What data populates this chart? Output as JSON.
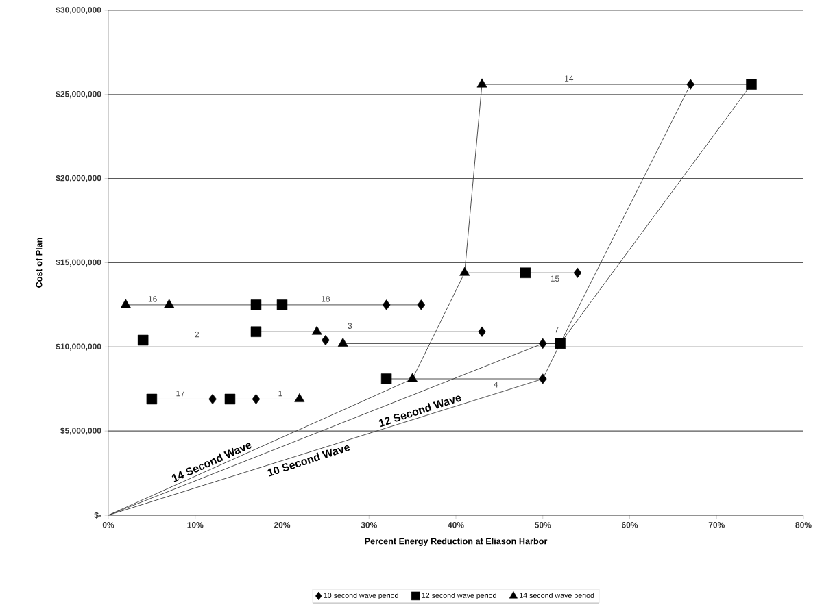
{
  "chart_data": {
    "type": "scatter",
    "xlabel": "Percent Energy Reduction at Eliason Harbor",
    "ylabel": "Cost of Plan",
    "xlim": [
      0,
      80
    ],
    "ylim": [
      0,
      30000000
    ],
    "xticks": [
      {
        "value": 0,
        "label": "0%"
      },
      {
        "value": 10,
        "label": "10%"
      },
      {
        "value": 20,
        "label": "20%"
      },
      {
        "value": 30,
        "label": "30%"
      },
      {
        "value": 40,
        "label": "40%"
      },
      {
        "value": 50,
        "label": "50%"
      },
      {
        "value": 60,
        "label": "60%"
      },
      {
        "value": 70,
        "label": "70%"
      },
      {
        "value": 80,
        "label": "80%"
      }
    ],
    "yticks": [
      {
        "value": 0,
        "label": "$-"
      },
      {
        "value": 5000000,
        "label": "$5,000,000"
      },
      {
        "value": 10000000,
        "label": "$10,000,000"
      },
      {
        "value": 15000000,
        "label": "$15,000,000"
      },
      {
        "value": 20000000,
        "label": "$20,000,000"
      },
      {
        "value": 25000000,
        "label": "$25,000,000"
      },
      {
        "value": 30000000,
        "label": "$30,000,000"
      }
    ],
    "grid": "y",
    "legend": "bottom",
    "series": [
      {
        "type": "line",
        "marker": "none",
        "color": "#404040",
        "x": [
          0,
          35,
          41,
          43
        ],
        "values": [
          0,
          8100000,
          14400000,
          25600000
        ]
      },
      {
        "type": "line",
        "marker": "none",
        "color": "#404040",
        "x": [
          0,
          50,
          52,
          67
        ],
        "values": [
          0,
          10200000,
          10200000,
          25600000
        ]
      },
      {
        "type": "line",
        "marker": "none",
        "color": "#404040",
        "x": [
          0,
          50,
          52,
          74
        ],
        "values": [
          0,
          8100000,
          10200000,
          25600000
        ]
      },
      {
        "type": "line",
        "marker": "none",
        "color": "#404040",
        "x": [
          5,
          12
        ],
        "values": [
          6900000,
          6900000
        ]
      },
      {
        "type": "line",
        "marker": "none",
        "color": "#404040",
        "x": [
          14,
          22
        ],
        "values": [
          6900000,
          6900000
        ]
      },
      {
        "type": "line",
        "marker": "none",
        "color": "#404040",
        "x": [
          2,
          36
        ],
        "values": [
          12500000,
          12500000
        ]
      },
      {
        "type": "line",
        "marker": "none",
        "color": "#404040",
        "x": [
          4,
          25
        ],
        "values": [
          10400000,
          10400000
        ]
      },
      {
        "type": "line",
        "marker": "none",
        "color": "#404040",
        "x": [
          17,
          43
        ],
        "values": [
          10900000,
          10900000
        ]
      },
      {
        "type": "line",
        "marker": "none",
        "color": "#404040",
        "x": [
          27,
          52
        ],
        "values": [
          10200000,
          10200000
        ]
      },
      {
        "type": "line",
        "marker": "none",
        "color": "#404040",
        "x": [
          32,
          50
        ],
        "values": [
          8100000,
          8100000
        ]
      },
      {
        "type": "line",
        "marker": "none",
        "color": "#404040",
        "x": [
          41,
          54
        ],
        "values": [
          14400000,
          14400000
        ]
      },
      {
        "type": "line",
        "marker": "none",
        "color": "#404040",
        "x": [
          43,
          74
        ],
        "values": [
          25600000,
          25600000
        ]
      },
      {
        "name": "10 second wave period",
        "marker": "diamond",
        "color": "#000000",
        "x": [
          12,
          17,
          25,
          50,
          43,
          32,
          36,
          50,
          54,
          67
        ],
        "values": [
          6900000,
          6900000,
          10400000,
          10200000,
          10900000,
          12500000,
          12500000,
          8100000,
          14400000,
          25600000
        ]
      },
      {
        "name": "12 second wave period",
        "marker": "square",
        "color": "#000000",
        "x": [
          5,
          14,
          4,
          17,
          52,
          17,
          20,
          32,
          48,
          74
        ],
        "values": [
          6900000,
          6900000,
          10400000,
          10900000,
          10200000,
          12500000,
          12500000,
          8100000,
          14400000,
          25600000
        ]
      },
      {
        "name": "14 second wave period",
        "marker": "triangle",
        "color": "#000000",
        "x": [
          22,
          2,
          7,
          24,
          27,
          35,
          41,
          43
        ],
        "values": [
          6900000,
          12500000,
          12500000,
          10900000,
          10200000,
          8100000,
          14400000,
          25600000
        ]
      }
    ],
    "annotations": [
      {
        "text": "17",
        "x": 8.3,
        "y": 6900000
      },
      {
        "text": "1",
        "x": 19.8,
        "y": 6900000
      },
      {
        "text": "16",
        "x": 5.1,
        "y": 12500000
      },
      {
        "text": "18",
        "x": 25,
        "y": 12500000
      },
      {
        "text": "2",
        "x": 10.2,
        "y": 10400000
      },
      {
        "text": "3",
        "x": 27.8,
        "y": 10900000
      },
      {
        "text": "7",
        "x": 51.6,
        "y": 10200000
      },
      {
        "text": "4",
        "x": 44.6,
        "y": 8100000
      },
      {
        "text": "15",
        "x": 51.4,
        "y": 14400000
      },
      {
        "text": "14",
        "x": 53,
        "y": 25600000
      },
      {
        "text": "14 Second Wave",
        "x": 12.2,
        "y": 2820000
      },
      {
        "text": "12 Second Wave",
        "x": 36.1,
        "y": 5850000
      },
      {
        "text": "10 Second Wave",
        "x": 22.8,
        "y": 3690000
      }
    ]
  }
}
